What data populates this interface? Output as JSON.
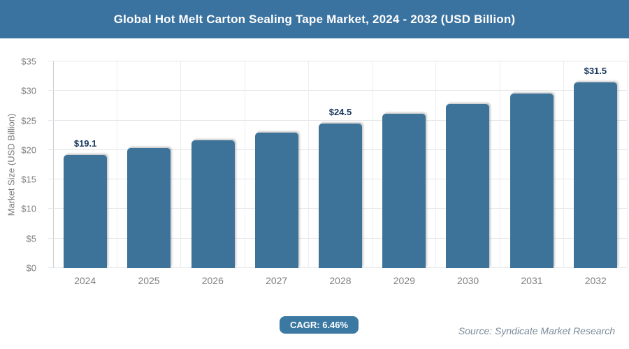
{
  "header": {
    "title": "Global Hot Melt Carton Sealing Tape Market, 2024 - 2032 (USD Billion)"
  },
  "chart_data": {
    "type": "bar",
    "title": "Global Hot Melt Carton Sealing Tape Market, 2024 - 2032 (USD Billion)",
    "categories": [
      "2024",
      "2025",
      "2026",
      "2027",
      "2028",
      "2029",
      "2030",
      "2031",
      "2032"
    ],
    "values": [
      19.1,
      20.3,
      21.6,
      23.0,
      24.5,
      26.1,
      27.8,
      29.6,
      31.5
    ],
    "bar_labels": [
      "$19.1",
      "",
      "",
      "",
      "$24.5",
      "",
      "",
      "",
      "$31.5"
    ],
    "xlabel": "",
    "ylabel": "Market Size (USD Billion)",
    "ylim": [
      0,
      35
    ],
    "ytick_step": 5,
    "ytick_labels": [
      "$0",
      "$5",
      "$10",
      "$15",
      "$20",
      "$25",
      "$30",
      "$35"
    ],
    "grid": true,
    "legend": "none",
    "bar_color": "#3d7398",
    "bar_label_color": "#16365c"
  },
  "footer": {
    "cagr_label": "CAGR: 6.46%",
    "source": "Source: Syndicate Market Research"
  },
  "colors": {
    "header_bg": "#3a72a0",
    "badge_bg": "#3c79a2",
    "axis_text": "#7f7f7f",
    "gridline": "#e4e6e9"
  }
}
